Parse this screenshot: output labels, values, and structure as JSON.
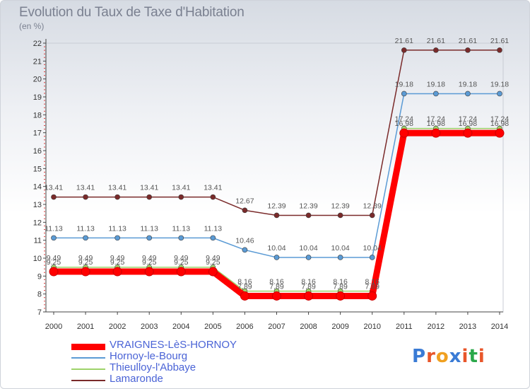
{
  "title": "Evolution du Taux de Taxe d'Habitation",
  "subtitle": "(en %)",
  "brand": {
    "text": "Proxiti",
    "colors": [
      "#3a7bd5",
      "#e8562a",
      "#f0a020",
      "#3a7bd5",
      "#e8562a",
      "#2aa84a",
      "#e8562a"
    ]
  },
  "chart_data": {
    "type": "line",
    "x": [
      "2000",
      "2001",
      "2002",
      "2003",
      "2004",
      "2005",
      "2006",
      "2007",
      "2008",
      "2009",
      "2010",
      "2011",
      "2012",
      "2013",
      "2014"
    ],
    "ylim": [
      7,
      22
    ],
    "yticks": [
      "7",
      "8",
      "9",
      "10",
      "11",
      "12",
      "13",
      "14",
      "15",
      "16",
      "17",
      "18",
      "19",
      "20",
      "21",
      "22"
    ],
    "grid": false,
    "legend_position": "bottom-left",
    "series": [
      {
        "name": "VRAIGNES-LèS-HORNOY",
        "color": "#ff0000",
        "values": [
          9.25,
          9.25,
          9.25,
          9.25,
          9.25,
          9.25,
          7.89,
          7.89,
          7.89,
          7.89,
          7.89,
          16.98,
          16.98,
          16.98,
          16.98
        ],
        "labels": [
          "9.25",
          "9.25",
          "9.25",
          "9.25",
          "9.25",
          "9.25",
          "7.89",
          "7.89",
          "7.89",
          "7.89",
          "7.89",
          "16.98",
          "16.98",
          "16.98",
          "16.98"
        ]
      },
      {
        "name": "Hornoy-le-Bourg",
        "color": "#5b9bd5",
        "values": [
          11.13,
          11.13,
          11.13,
          11.13,
          11.13,
          11.13,
          10.46,
          10.04,
          10.04,
          10.04,
          10.04,
          19.18,
          19.18,
          19.18,
          19.18
        ],
        "labels": [
          "11.13",
          "11.13",
          "11.13",
          "11.13",
          "11.13",
          "11.13",
          "10.46",
          "10.04",
          "10.04",
          "10.04",
          "10.04",
          "19.18",
          "19.18",
          "19.18",
          "19.18"
        ]
      },
      {
        "name": "Thieulloy-l'Abbaye",
        "color": "#9ed36a",
        "values": [
          9.49,
          9.49,
          9.49,
          9.49,
          9.49,
          9.49,
          8.16,
          8.16,
          8.16,
          8.16,
          8.16,
          17.24,
          17.24,
          17.24,
          17.24
        ],
        "labels": [
          "9.49",
          "9.49",
          "9.49",
          "9.49",
          "9.49",
          "9.49",
          "8.16",
          "8.16",
          "8.16",
          "8.16",
          "8.16",
          "17.24",
          "17.24",
          "17.24",
          "17.24"
        ]
      },
      {
        "name": "Lamaronde",
        "color": "#7a2a2a",
        "values": [
          13.41,
          13.41,
          13.41,
          13.41,
          13.41,
          13.41,
          12.67,
          12.39,
          12.39,
          12.39,
          12.39,
          21.61,
          21.61,
          21.61,
          21.61
        ],
        "labels": [
          "13.41",
          "13.41",
          "13.41",
          "13.41",
          "13.41",
          "13.41",
          "12.67",
          "12.39",
          "12.39",
          "12.39",
          "12.39",
          "21.61",
          "21.61",
          "21.61",
          "21.61"
        ]
      }
    ]
  }
}
